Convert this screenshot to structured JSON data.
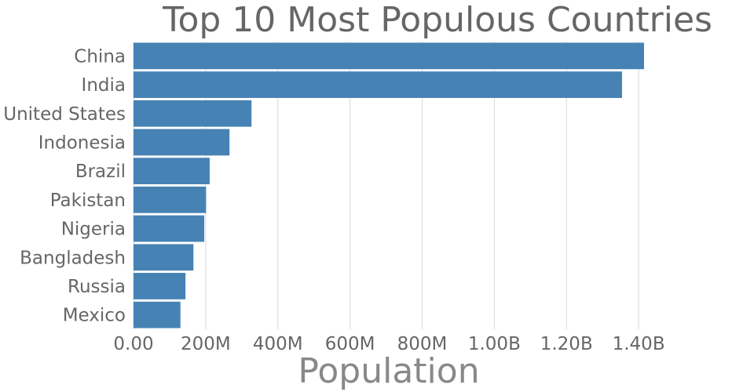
{
  "chart_data": {
    "type": "bar",
    "orientation": "horizontal",
    "title": "Top 10 Most Populous Countries",
    "xlabel": "Population",
    "ylabel": "",
    "categories": [
      "China",
      "India",
      "United States",
      "Indonesia",
      "Brazil",
      "Pakistan",
      "Nigeria",
      "Bangladesh",
      "Russia",
      "Mexico"
    ],
    "values": [
      1415000000,
      1354000000,
      327000000,
      266000000,
      211000000,
      201000000,
      196000000,
      166000000,
      144000000,
      130000000
    ],
    "xlim": [
      0,
      1415000000
    ],
    "xticks": [
      0,
      200000000,
      400000000,
      600000000,
      800000000,
      1000000000,
      1200000000,
      1400000000
    ],
    "xtick_labels": [
      "0.00",
      "200M",
      "400M",
      "600M",
      "800M",
      "1.00B",
      "1.20B",
      "1.40B"
    ],
    "grid": "vertical",
    "legend": "none",
    "bar_color": "#4682b4"
  }
}
